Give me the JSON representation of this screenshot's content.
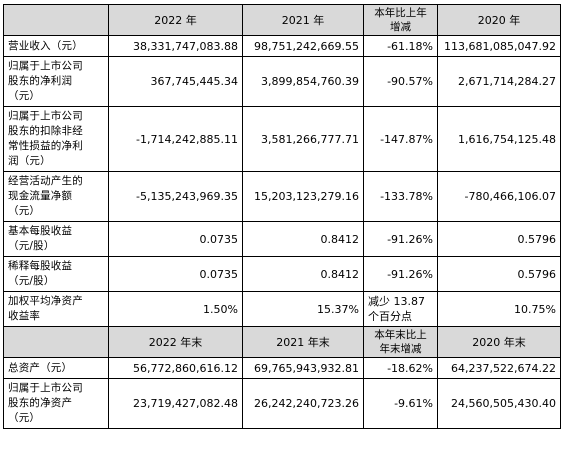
{
  "header1": [
    "",
    "2022 年",
    "2021 年",
    "本年比上年\n增减",
    "2020 年"
  ],
  "rows1": [
    {
      "label": "营业收入（元）",
      "values": [
        "38,331,747,083.88",
        "98,751,242,669.55",
        "-61.18%",
        "113,681,085,047.92"
      ]
    },
    {
      "label": "归属于上市公司\n股东的净利润\n（元）",
      "values": [
        "367,745,445.34",
        "3,899,854,760.39",
        "-90.57%",
        "2,671,714,284.27"
      ]
    },
    {
      "label": "归属于上市公司\n股东的扣除非经\n常性损益的净利\n润（元）",
      "values": [
        "-1,714,242,885.11",
        "3,581,266,777.71",
        "-147.87%",
        "1,616,754,125.48"
      ]
    },
    {
      "label": "经营活动产生的\n现金流量净额\n（元）",
      "values": [
        "-5,135,243,969.35",
        "15,203,123,279.16",
        "-133.78%",
        "-780,466,106.07"
      ]
    },
    {
      "label": "基本每股收益\n（元/股）",
      "values": [
        "0.0735",
        "0.8412",
        "-91.26%",
        "0.5796"
      ]
    },
    {
      "label": "稀释每股收益\n（元/股）",
      "values": [
        "0.0735",
        "0.8412",
        "-91.26%",
        "0.5796"
      ]
    },
    {
      "label": "加权平均净资产\n收益率",
      "values": [
        "1.50%",
        "15.37%",
        "减少 13.87\n个百分点",
        "10.75%"
      ]
    }
  ],
  "header2": [
    "",
    "2022 年末",
    "2021 年末",
    "本年末比上\n年末增减",
    "2020 年末"
  ],
  "rows2": [
    {
      "label": "总资产（元）",
      "values": [
        "56,772,860,616.12",
        "69,765,943,932.81",
        "-18.62%",
        "64,237,522,674.22"
      ]
    },
    {
      "label": "归属于上市公司\n股东的净资产\n（元）",
      "values": [
        "23,719,427,082.48",
        "26,242,240,723.26",
        "-9.61%",
        "24,560,505,430.40"
      ]
    }
  ]
}
